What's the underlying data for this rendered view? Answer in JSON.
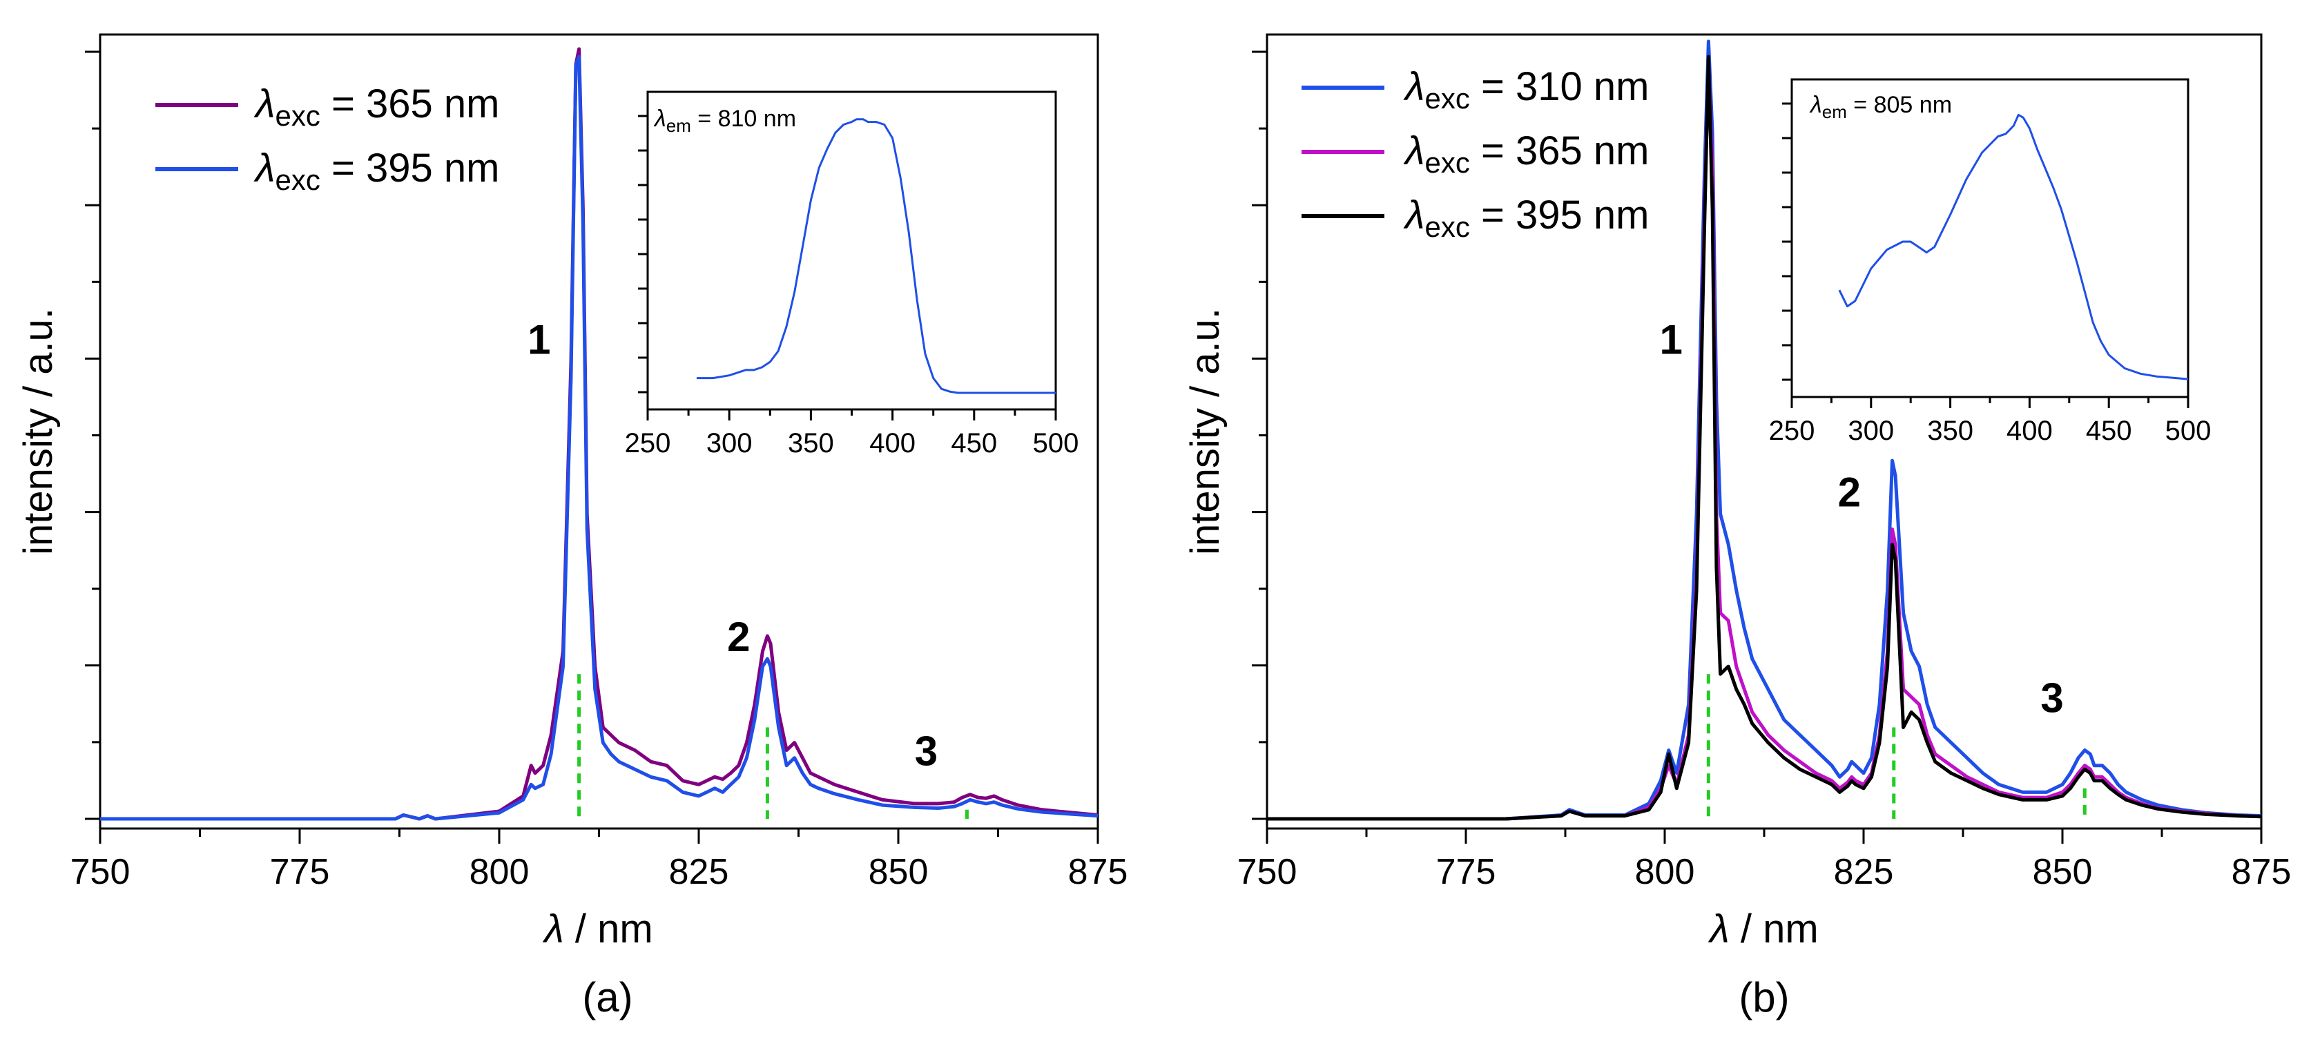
{
  "chart_data": [
    {
      "type": "line",
      "panel": "(a)",
      "xlabel_symbol": "λ",
      "xlabel_unit": " / nm",
      "ylabel": "intensity / a.u.",
      "xlim": [
        750,
        875
      ],
      "ylim": [
        0,
        1.02
      ],
      "xticks": [
        750,
        775,
        800,
        825,
        850,
        875
      ],
      "yticks": 10,
      "legend_position": "top-left",
      "series": [
        {
          "legend_main": "λ",
          "legend_sub": "exc",
          "legend_value": " = 365 nm",
          "color": "#800080",
          "x": [
            750,
            780,
            787,
            788,
            790,
            791,
            792,
            800,
            803,
            804,
            804.5,
            805.5,
            806.5,
            808,
            809,
            809.6,
            810,
            810.5,
            811,
            812,
            813,
            814,
            815,
            817,
            819,
            821,
            823,
            825,
            826,
            827,
            828,
            829,
            830,
            831,
            832,
            833,
            833.6,
            834,
            835,
            836,
            837,
            838,
            839,
            840,
            842,
            845,
            848,
            852,
            855,
            857,
            858,
            859,
            860,
            861,
            862,
            863,
            865,
            868,
            872,
            875
          ],
          "y": [
            0,
            0,
            0,
            0.005,
            0,
            0.004,
            0,
            0.01,
            0.03,
            0.07,
            0.06,
            0.07,
            0.11,
            0.22,
            0.6,
            0.99,
            1.01,
            0.8,
            0.4,
            0.2,
            0.12,
            0.11,
            0.1,
            0.09,
            0.075,
            0.07,
            0.05,
            0.045,
            0.05,
            0.055,
            0.052,
            0.06,
            0.07,
            0.1,
            0.15,
            0.22,
            0.24,
            0.23,
            0.14,
            0.09,
            0.1,
            0.08,
            0.06,
            0.055,
            0.045,
            0.035,
            0.025,
            0.02,
            0.02,
            0.022,
            0.028,
            0.032,
            0.028,
            0.027,
            0.03,
            0.025,
            0.018,
            0.012,
            0.008,
            0.005
          ]
        },
        {
          "legend_main": "λ",
          "legend_sub": "exc",
          "legend_value": " = 395 nm",
          "color": "#1f4fe8",
          "x": [
            750,
            780,
            787,
            788,
            790,
            791,
            792,
            800,
            803,
            804,
            804.5,
            805.5,
            806.5,
            808,
            809,
            809.6,
            810,
            810.5,
            811,
            812,
            813,
            814,
            815,
            817,
            819,
            821,
            823,
            825,
            826,
            827,
            828,
            829,
            830,
            831,
            832,
            833,
            833.6,
            834,
            835,
            836,
            837,
            838,
            839,
            840,
            842,
            845,
            848,
            852,
            855,
            857,
            858,
            859,
            860,
            861,
            862,
            863,
            865,
            868,
            872,
            875
          ],
          "y": [
            0,
            0,
            0,
            0.005,
            0,
            0.004,
            0,
            0.008,
            0.025,
            0.045,
            0.04,
            0.045,
            0.085,
            0.2,
            0.58,
            0.99,
            1.0,
            0.78,
            0.38,
            0.17,
            0.1,
            0.085,
            0.075,
            0.065,
            0.055,
            0.05,
            0.035,
            0.03,
            0.035,
            0.04,
            0.035,
            0.045,
            0.055,
            0.08,
            0.13,
            0.2,
            0.21,
            0.2,
            0.12,
            0.07,
            0.08,
            0.06,
            0.045,
            0.04,
            0.033,
            0.025,
            0.018,
            0.015,
            0.014,
            0.016,
            0.02,
            0.025,
            0.022,
            0.02,
            0.022,
            0.018,
            0.013,
            0.009,
            0.006,
            0.004
          ]
        }
      ],
      "markers": [
        {
          "x": 810,
          "y": 0.19
        },
        {
          "x": 833.6,
          "y": 0.12
        },
        {
          "x": 858.6,
          "y": 0.012
        }
      ],
      "peak_labels": [
        {
          "text": "1",
          "x": 805,
          "y": 0.61
        },
        {
          "text": "2",
          "x": 830,
          "y": 0.22
        },
        {
          "text": "3",
          "x": 853.5,
          "y": 0.07
        }
      ],
      "inset": {
        "label_main": "λ",
        "label_sub": "em",
        "label_value": " = 810 nm",
        "xlim": [
          250,
          500
        ],
        "ylim": [
          0,
          1.05
        ],
        "xticks": [
          250,
          300,
          350,
          400,
          450,
          500
        ],
        "yticks": 8,
        "series": {
          "color": "#1f4fe8",
          "x": [
            280,
            290,
            300,
            305,
            310,
            315,
            320,
            325,
            330,
            335,
            340,
            345,
            350,
            355,
            360,
            365,
            370,
            375,
            378,
            382,
            385,
            390,
            395,
            400,
            405,
            410,
            415,
            420,
            425,
            430,
            435,
            440,
            450,
            460,
            470,
            480,
            490,
            500
          ],
          "y": [
            0.06,
            0.06,
            0.07,
            0.08,
            0.09,
            0.09,
            0.1,
            0.12,
            0.16,
            0.25,
            0.38,
            0.55,
            0.72,
            0.84,
            0.91,
            0.97,
            1.0,
            1.01,
            1.02,
            1.02,
            1.01,
            1.01,
            1.0,
            0.95,
            0.8,
            0.6,
            0.35,
            0.15,
            0.06,
            0.02,
            0.01,
            0.005,
            0.005,
            0.005,
            0.005,
            0.005,
            0.005,
            0.005
          ]
        }
      },
      "caption": "(a)"
    },
    {
      "type": "line",
      "panel": "(b)",
      "xlabel_symbol": "λ",
      "xlabel_unit": " / nm",
      "ylabel": "intensity / a.u.",
      "xlim": [
        750,
        875
      ],
      "ylim": [
        0,
        1.02
      ],
      "xticks": [
        750,
        775,
        800,
        825,
        850,
        875
      ],
      "yticks": 10,
      "legend_position": "top-left",
      "series": [
        {
          "legend_main": "λ",
          "legend_sub": "exc",
          "legend_value": " = 310 nm",
          "color": "#1f4fe8",
          "x": [
            750,
            780,
            787,
            788,
            790,
            795,
            798,
            799.5,
            800.5,
            801.5,
            803,
            804,
            805,
            805.5,
            806,
            806.5,
            807,
            808,
            809,
            810,
            811,
            813,
            815,
            817,
            819,
            821,
            822,
            823,
            823.5,
            824,
            825,
            826,
            827,
            828,
            828.6,
            829,
            830,
            831,
            832,
            833,
            834,
            836,
            838,
            840,
            842,
            845,
            848,
            850,
            851,
            852,
            852.8,
            853.5,
            854,
            855,
            856,
            857,
            858,
            860,
            862,
            865,
            868,
            872,
            875
          ],
          "y": [
            0,
            0,
            0.005,
            0.012,
            0.005,
            0.005,
            0.02,
            0.05,
            0.09,
            0.06,
            0.15,
            0.4,
            0.85,
            1.02,
            0.9,
            0.55,
            0.4,
            0.36,
            0.3,
            0.25,
            0.21,
            0.17,
            0.13,
            0.11,
            0.09,
            0.07,
            0.055,
            0.065,
            0.075,
            0.07,
            0.06,
            0.08,
            0.15,
            0.3,
            0.47,
            0.45,
            0.27,
            0.22,
            0.2,
            0.15,
            0.12,
            0.1,
            0.08,
            0.06,
            0.045,
            0.035,
            0.035,
            0.045,
            0.06,
            0.08,
            0.09,
            0.085,
            0.07,
            0.07,
            0.06,
            0.045,
            0.035,
            0.025,
            0.018,
            0.012,
            0.008,
            0.005,
            0.004
          ]
        },
        {
          "legend_main": "λ",
          "legend_sub": "exc",
          "legend_value": " = 365 nm",
          "color": "#c010c8",
          "x": [
            750,
            780,
            787,
            788,
            790,
            795,
            798,
            799.5,
            800.5,
            801.5,
            803,
            804,
            805,
            805.5,
            806,
            806.5,
            807,
            808,
            809,
            810,
            811,
            813,
            815,
            817,
            819,
            821,
            822,
            823,
            823.5,
            824,
            825,
            826,
            827,
            828,
            828.6,
            829,
            830,
            831,
            832,
            833,
            834,
            836,
            838,
            840,
            842,
            845,
            848,
            850,
            851,
            852,
            852.8,
            853.5,
            854,
            855,
            856,
            857,
            858,
            860,
            862,
            865,
            868,
            872,
            875
          ],
          "y": [
            0,
            0,
            0.004,
            0.01,
            0.004,
            0.004,
            0.015,
            0.04,
            0.07,
            0.045,
            0.11,
            0.32,
            0.8,
            0.99,
            0.85,
            0.4,
            0.27,
            0.26,
            0.2,
            0.17,
            0.14,
            0.11,
            0.09,
            0.075,
            0.06,
            0.05,
            0.04,
            0.048,
            0.055,
            0.05,
            0.045,
            0.06,
            0.11,
            0.22,
            0.38,
            0.36,
            0.17,
            0.16,
            0.15,
            0.11,
            0.085,
            0.07,
            0.055,
            0.045,
            0.035,
            0.028,
            0.028,
            0.035,
            0.045,
            0.06,
            0.07,
            0.065,
            0.055,
            0.055,
            0.045,
            0.035,
            0.028,
            0.02,
            0.014,
            0.01,
            0.007,
            0.004,
            0.003
          ]
        },
        {
          "legend_main": "λ",
          "legend_sub": "exc",
          "legend_value": " = 395 nm",
          "color": "#000000",
          "x": [
            750,
            780,
            787,
            788,
            790,
            795,
            798,
            799.5,
            800.5,
            801.5,
            803,
            804,
            805,
            805.5,
            806,
            806.5,
            807,
            808,
            809,
            810,
            811,
            813,
            815,
            817,
            819,
            821,
            822,
            823,
            823.5,
            824,
            825,
            826,
            827,
            828,
            828.6,
            829,
            830,
            831,
            832,
            833,
            834,
            836,
            838,
            840,
            842,
            845,
            848,
            850,
            851,
            852,
            852.8,
            853.5,
            854,
            855,
            856,
            857,
            858,
            860,
            862,
            865,
            868,
            872,
            875
          ],
          "y": [
            0,
            0,
            0.004,
            0.01,
            0.004,
            0.004,
            0.012,
            0.035,
            0.085,
            0.04,
            0.1,
            0.3,
            0.78,
            1.0,
            0.8,
            0.33,
            0.19,
            0.2,
            0.17,
            0.15,
            0.125,
            0.1,
            0.08,
            0.065,
            0.055,
            0.045,
            0.035,
            0.043,
            0.05,
            0.045,
            0.04,
            0.055,
            0.1,
            0.2,
            0.36,
            0.34,
            0.12,
            0.14,
            0.13,
            0.1,
            0.075,
            0.06,
            0.05,
            0.04,
            0.032,
            0.025,
            0.025,
            0.03,
            0.04,
            0.055,
            0.065,
            0.06,
            0.05,
            0.05,
            0.04,
            0.032,
            0.025,
            0.018,
            0.013,
            0.009,
            0.006,
            0.004,
            0.003
          ]
        }
      ],
      "markers": [
        {
          "x": 805.5,
          "y": 0.19
        },
        {
          "x": 828.8,
          "y": 0.12
        },
        {
          "x": 852.8,
          "y": 0.04
        }
      ],
      "peak_labels": [
        {
          "text": "1",
          "x": 800.8,
          "y": 0.61
        },
        {
          "text": "2",
          "x": 823.2,
          "y": 0.41
        },
        {
          "text": "3",
          "x": 848.7,
          "y": 0.14
        }
      ],
      "inset": {
        "label_main": "λ",
        "label_sub": "em",
        "label_value": " = 805 nm",
        "xlim": [
          250,
          500
        ],
        "ylim": [
          0,
          1.05
        ],
        "xticks": [
          250,
          300,
          350,
          400,
          450,
          500
        ],
        "yticks": 8,
        "series": {
          "color": "#1f4fe8",
          "x": [
            280,
            285,
            290,
            295,
            300,
            310,
            320,
            325,
            330,
            335,
            340,
            350,
            360,
            370,
            380,
            385,
            390,
            393,
            396,
            400,
            405,
            410,
            415,
            420,
            425,
            430,
            435,
            440,
            445,
            450,
            460,
            470,
            480,
            490,
            500
          ],
          "y": [
            0.34,
            0.28,
            0.3,
            0.36,
            0.42,
            0.49,
            0.52,
            0.52,
            0.5,
            0.48,
            0.5,
            0.62,
            0.75,
            0.85,
            0.91,
            0.92,
            0.95,
            0.99,
            0.98,
            0.94,
            0.86,
            0.79,
            0.72,
            0.64,
            0.54,
            0.44,
            0.33,
            0.22,
            0.15,
            0.1,
            0.05,
            0.03,
            0.02,
            0.015,
            0.01
          ]
        }
      },
      "caption": "(b)"
    }
  ]
}
